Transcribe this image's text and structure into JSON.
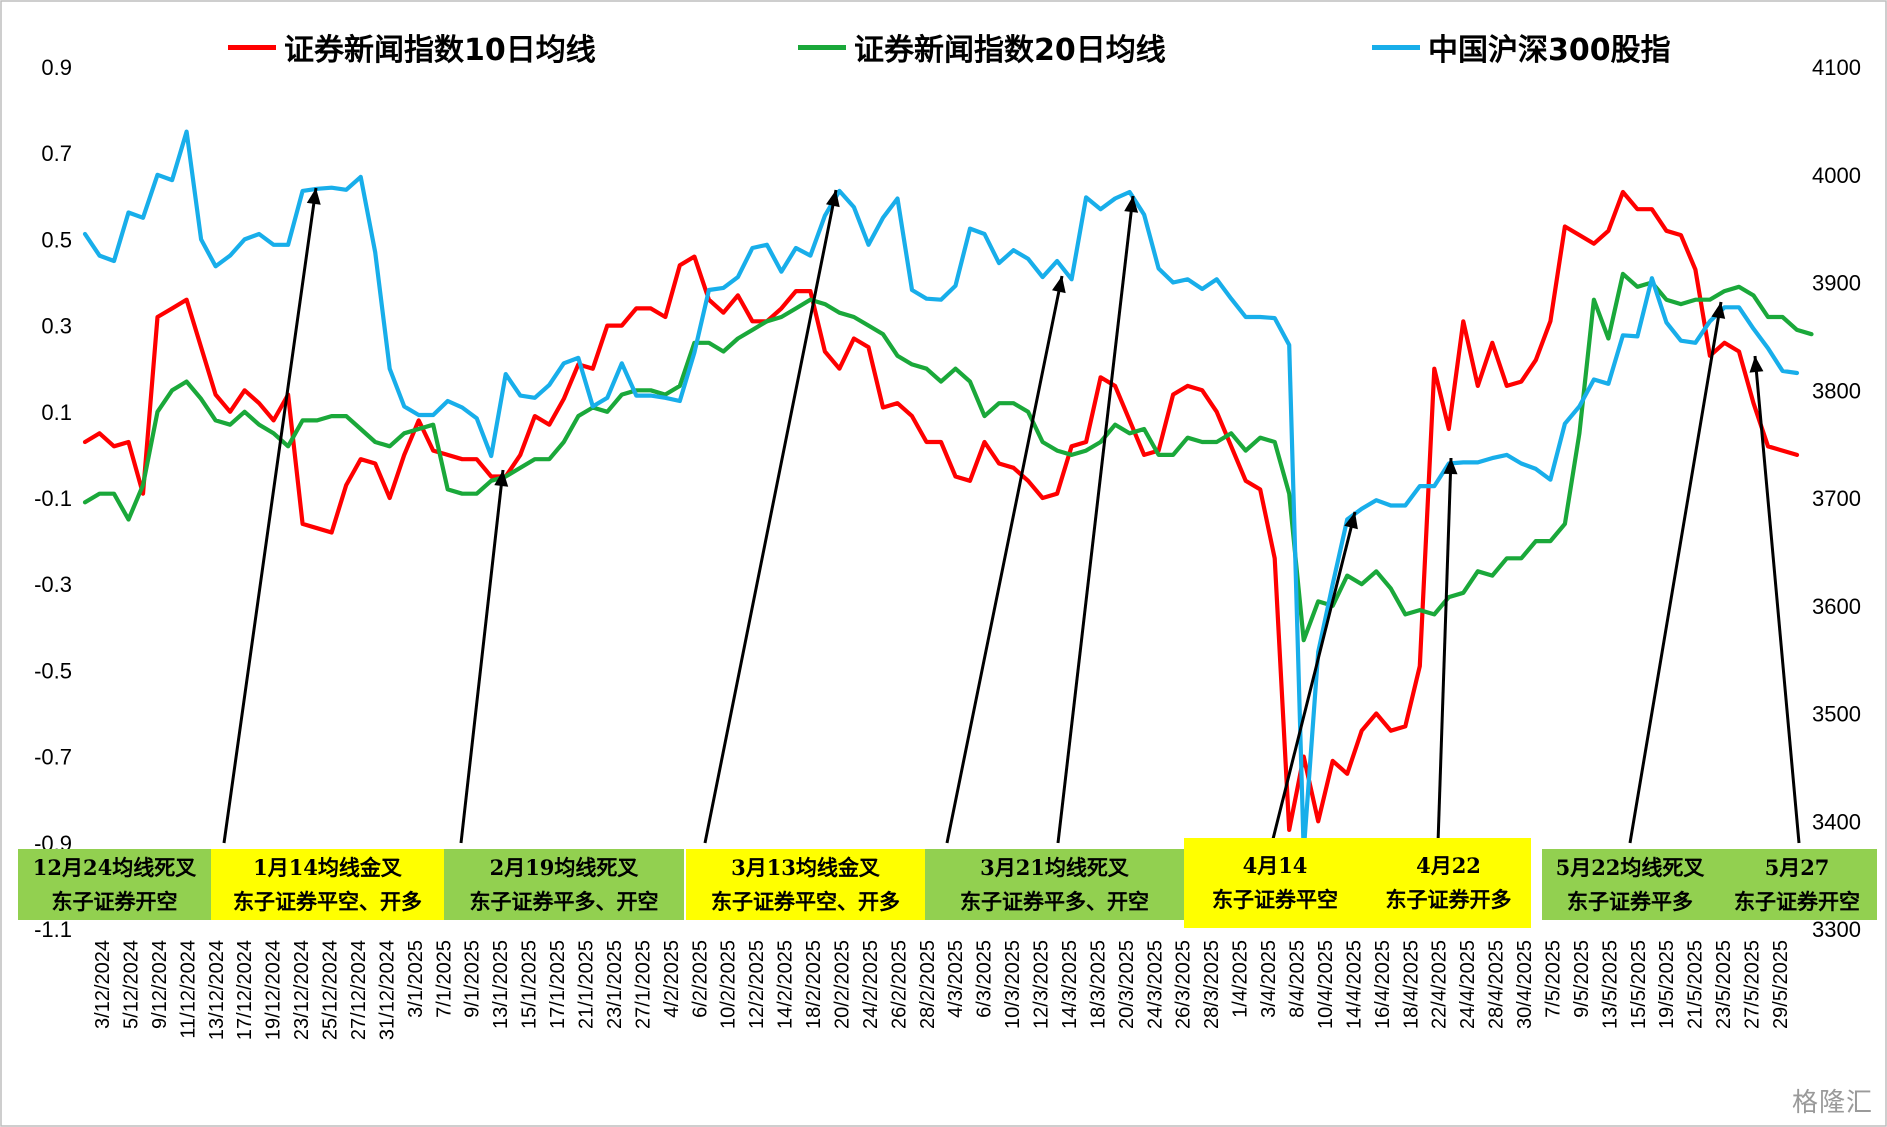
{
  "colors": {
    "ma10": "#ff0000",
    "ma20": "#1aa83a",
    "hs300": "#18aeea",
    "annotation_green": "#92d050",
    "annotation_yellow": "#ffff00",
    "arrow": "#000000"
  },
  "watermark": "格隆汇",
  "chart_data": {
    "type": "line",
    "legend_position": "top",
    "grid": false,
    "y_left": {
      "ticks": [
        0.9,
        0.7,
        0.5,
        0.3,
        0.1,
        -0.1,
        -0.3,
        -0.5,
        -0.7,
        -0.9,
        -1.1
      ],
      "ylim": [
        -1.1,
        0.9
      ]
    },
    "y_right": {
      "ticks": [
        4100,
        4000,
        3900,
        3800,
        3700,
        3600,
        3500,
        3400,
        3300
      ],
      "ylim": [
        3300,
        4100
      ]
    },
    "x_tick_labels": [
      "3/12/2024",
      "5/12/2024",
      "9/12/2024",
      "11/12/2024",
      "13/12/2024",
      "17/12/2024",
      "19/12/2024",
      "23/12/2024",
      "25/12/2024",
      "27/12/2024",
      "31/12/2024",
      "3/1/2025",
      "7/1/2025",
      "9/1/2025",
      "13/1/2025",
      "15/1/2025",
      "17/1/2025",
      "21/1/2025",
      "23/1/2025",
      "27/1/2025",
      "4/2/2025",
      "6/2/2025",
      "10/2/2025",
      "12/2/2025",
      "14/2/2025",
      "18/2/2025",
      "20/2/2025",
      "24/2/2025",
      "26/2/2025",
      "28/2/2025",
      "4/3/2025",
      "6/3/2025",
      "10/3/2025",
      "12/3/2025",
      "14/3/2025",
      "18/3/2025",
      "20/3/2025",
      "24/3/2025",
      "26/3/2025",
      "28/3/2025",
      "1/4/2025",
      "3/4/2025",
      "8/4/2025",
      "10/4/2025",
      "14/4/2025",
      "16/4/2025",
      "18/4/2025",
      "22/4/2025",
      "24/4/2025",
      "28/4/2025",
      "30/4/2025",
      "7/5/2025",
      "9/5/2025",
      "13/5/2025",
      "15/5/2025",
      "19/5/2025",
      "21/5/2025",
      "23/5/2025",
      "27/5/2025",
      "29/5/2025"
    ],
    "series": [
      {
        "name": "证券新闻指数10日均线",
        "axis": "left",
        "color": "#ff0000",
        "values": [
          0.03,
          0.05,
          0.02,
          0.03,
          -0.09,
          0.32,
          0.34,
          0.36,
          0.25,
          0.14,
          0.1,
          0.15,
          0.12,
          0.08,
          0.14,
          -0.16,
          -0.17,
          -0.18,
          -0.07,
          -0.01,
          -0.02,
          -0.1,
          0.0,
          0.08,
          0.01,
          0.0,
          -0.01,
          -0.01,
          -0.05,
          -0.05,
          0.0,
          0.09,
          0.07,
          0.13,
          0.21,
          0.2,
          0.3,
          0.3,
          0.34,
          0.34,
          0.32,
          0.44,
          0.46,
          0.36,
          0.33,
          0.37,
          0.31,
          0.31,
          0.34,
          0.38,
          0.38,
          0.24,
          0.2,
          0.27,
          0.25,
          0.11,
          0.12,
          0.09,
          0.03,
          0.03,
          -0.05,
          -0.06,
          0.03,
          -0.02,
          -0.03,
          -0.06,
          -0.1,
          -0.09,
          0.02,
          0.03,
          0.18,
          0.16,
          0.08,
          0.0,
          0.01,
          0.14,
          0.16,
          0.15,
          0.1,
          0.02,
          -0.06,
          -0.08,
          -0.24,
          -0.87,
          -0.7,
          -0.85,
          -0.71,
          -0.74,
          -0.64,
          -0.6,
          -0.64,
          -0.63,
          -0.49,
          0.2,
          0.06,
          0.31,
          0.16,
          0.26,
          0.16,
          0.17,
          0.22,
          0.31,
          0.53,
          0.51,
          0.49,
          0.52,
          0.61,
          0.57,
          0.57,
          0.52,
          0.51,
          0.43,
          0.23,
          0.26,
          0.24,
          0.12,
          0.02,
          0.01,
          0.0
        ]
      },
      {
        "name": "证券新闻指数20日均线",
        "axis": "left",
        "color": "#1aa83a",
        "values": [
          -0.11,
          -0.09,
          -0.09,
          -0.15,
          -0.07,
          0.1,
          0.15,
          0.17,
          0.13,
          0.08,
          0.07,
          0.1,
          0.07,
          0.05,
          0.02,
          0.08,
          0.08,
          0.09,
          0.09,
          0.06,
          0.03,
          0.02,
          0.05,
          0.06,
          0.07,
          -0.08,
          -0.09,
          -0.09,
          -0.06,
          -0.05,
          -0.03,
          -0.01,
          -0.01,
          0.03,
          0.09,
          0.11,
          0.1,
          0.14,
          0.15,
          0.15,
          0.14,
          0.16,
          0.26,
          0.26,
          0.24,
          0.27,
          0.29,
          0.31,
          0.32,
          0.34,
          0.36,
          0.35,
          0.33,
          0.32,
          0.3,
          0.28,
          0.23,
          0.21,
          0.2,
          0.17,
          0.2,
          0.17,
          0.09,
          0.12,
          0.12,
          0.1,
          0.03,
          0.01,
          0.0,
          0.01,
          0.03,
          0.07,
          0.05,
          0.06,
          0.0,
          0.0,
          0.04,
          0.03,
          0.03,
          0.05,
          0.01,
          0.04,
          0.03,
          -0.09,
          -0.43,
          -0.34,
          -0.35,
          -0.28,
          -0.3,
          -0.27,
          -0.31,
          -0.37,
          -0.36,
          -0.37,
          -0.33,
          -0.32,
          -0.27,
          -0.28,
          -0.24,
          -0.24,
          -0.2,
          -0.2,
          -0.16,
          0.05,
          0.36,
          0.27,
          0.42,
          0.39,
          0.4,
          0.36,
          0.35,
          0.36,
          0.36,
          0.38,
          0.39,
          0.37,
          0.32,
          0.32,
          0.29,
          0.28
        ]
      },
      {
        "name": "中国沪深300股指",
        "axis": "right",
        "color": "#18aeea",
        "values": [
          3945,
          3925,
          3920,
          3965,
          3960,
          4000,
          3995,
          4040,
          3940,
          3915,
          3925,
          3940,
          3945,
          3935,
          3935,
          3985,
          3987,
          3988,
          3986,
          3998,
          3928,
          3820,
          3785,
          3777,
          3777,
          3790,
          3784,
          3774,
          3739,
          3815,
          3795,
          3793,
          3805,
          3825,
          3830,
          3785,
          3793,
          3825,
          3795,
          3795,
          3793,
          3790,
          3835,
          3893,
          3895,
          3905,
          3932,
          3935,
          3910,
          3932,
          3925,
          3962,
          3985,
          3970,
          3935,
          3960,
          3978,
          3893,
          3885,
          3884,
          3897,
          3950,
          3945,
          3918,
          3930,
          3922,
          3905,
          3920,
          3903,
          3979,
          3968,
          3978,
          3984,
          3963,
          3913,
          3900,
          3903,
          3894,
          3903,
          3885,
          3868,
          3868,
          3867,
          3842,
          3372,
          3557,
          3620,
          3680,
          3690,
          3698,
          3693,
          3693,
          3711,
          3711,
          3732,
          3733,
          3733,
          3737,
          3740,
          3732,
          3727,
          3717,
          3769,
          3785,
          3810,
          3806,
          3851,
          3850,
          3904,
          3863,
          3846,
          3844,
          3864,
          3877,
          3877,
          3857,
          3839,
          3818,
          3816
        ]
      }
    ],
    "annotations": [
      {
        "line1": "12月24均线死叉",
        "line2": "东子证券开空",
        "color": "green"
      },
      {
        "line1": "1月14均线金叉",
        "line2": "东子证券平空、开多",
        "color": "yellow"
      },
      {
        "line1": "2月19均线死叉",
        "line2": "东子证券平多、开空",
        "color": "green"
      },
      {
        "line1": "3月13均线金叉",
        "line2": "东子证券平空、开多",
        "color": "yellow"
      },
      {
        "line1": "3月21均线死叉",
        "line2": "东子证券平多、开空",
        "color": "green"
      },
      {
        "line1": "4月14",
        "line2": "东子证券平空",
        "color": "yellow"
      },
      {
        "line1": "4月22",
        "line2": "东子证券开多",
        "color": "yellow"
      },
      {
        "line1": "5月22均线死叉",
        "line2": "东子证券平多",
        "color": "green"
      },
      {
        "line1": "5月27",
        "line2": "东子证券开空",
        "color": "green"
      }
    ]
  }
}
